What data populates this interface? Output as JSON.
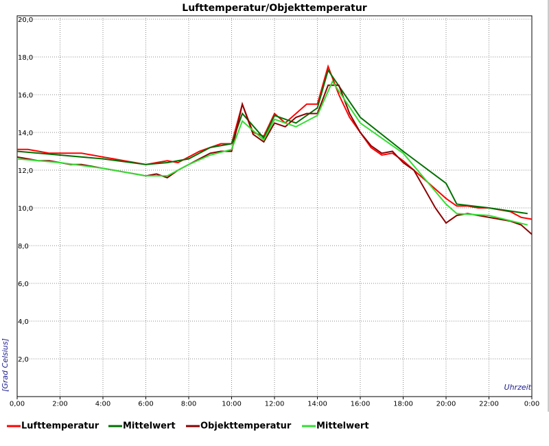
{
  "chart_data": {
    "type": "line",
    "title": "Lufttemperatur/Objekttemperatur",
    "x_label": "Uhrzeit",
    "y_label": "[Grad Celsius]",
    "xlim": [
      0,
      24
    ],
    "ylim": [
      0,
      20
    ],
    "grid": true,
    "xticks": [
      {
        "value": 0,
        "label": "0,00"
      },
      {
        "value": 2,
        "label": "2:00"
      },
      {
        "value": 4,
        "label": "4:00"
      },
      {
        "value": 6,
        "label": "6:00"
      },
      {
        "value": 8,
        "label": "8:00"
      },
      {
        "value": 10,
        "label": "10:00"
      },
      {
        "value": 12,
        "label": "12:00"
      },
      {
        "value": 14,
        "label": "14:00"
      },
      {
        "value": 16,
        "label": "16:00"
      },
      {
        "value": 18,
        "label": "18:00"
      },
      {
        "value": 20,
        "label": "20:00"
      },
      {
        "value": 22,
        "label": "22:00"
      },
      {
        "value": 24,
        "label": "0:00"
      }
    ],
    "yticks": [
      {
        "value": 2,
        "label": "2,0"
      },
      {
        "value": 4,
        "label": "4,0"
      },
      {
        "value": 6,
        "label": "6,0"
      },
      {
        "value": 8,
        "label": "8,0"
      },
      {
        "value": 10,
        "label": "10,0"
      },
      {
        "value": 12,
        "label": "12,0"
      },
      {
        "value": 14,
        "label": "14,0"
      },
      {
        "value": 16,
        "label": "16,0"
      },
      {
        "value": 18,
        "label": "18,0"
      },
      {
        "value": 20,
        "label": "20,0"
      }
    ],
    "series": [
      {
        "name": "Lufttemperatur",
        "color": "#ff0000",
        "x": [
          0,
          0.5,
          1,
          1.5,
          2,
          2.5,
          3,
          3.5,
          4,
          4.5,
          5,
          5.5,
          6,
          6.5,
          7,
          7.5,
          8,
          8.5,
          9,
          9.5,
          10,
          10.5,
          11,
          11.5,
          12,
          12.5,
          13,
          13.5,
          14,
          14.5,
          15,
          15.5,
          16,
          16.5,
          17,
          17.5,
          18,
          18.5,
          19,
          19.5,
          20,
          20.5,
          21,
          21.5,
          22,
          22.5,
          23,
          23.5,
          24
        ],
        "values": [
          13.1,
          13.1,
          13.0,
          12.9,
          12.9,
          12.9,
          12.9,
          12.8,
          12.7,
          12.6,
          12.5,
          12.4,
          12.3,
          12.4,
          12.5,
          12.4,
          12.7,
          13.0,
          13.2,
          13.4,
          13.4,
          15.5,
          14.0,
          13.8,
          15.0,
          14.5,
          15.0,
          15.5,
          15.5,
          17.5,
          16.0,
          14.8,
          14.0,
          13.2,
          12.8,
          12.9,
          12.5,
          12.0,
          11.5,
          11.0,
          10.5,
          10.1,
          10.1,
          10.0,
          10.0,
          9.9,
          9.8,
          9.5,
          9.4
        ]
      },
      {
        "name": "Mittelwert",
        "color": "#007000",
        "x": [
          0,
          2,
          4,
          6,
          7,
          8,
          9,
          10,
          10.5,
          11.5,
          12,
          13,
          14,
          14.5,
          16,
          18,
          20,
          20.5,
          22,
          23.8
        ],
        "values": [
          13.0,
          12.8,
          12.6,
          12.3,
          12.4,
          12.6,
          13.2,
          13.4,
          15.0,
          13.7,
          14.9,
          14.5,
          15.3,
          17.3,
          14.8,
          13.0,
          11.3,
          10.2,
          10.0,
          9.7
        ]
      },
      {
        "name": "Objekttemperatur",
        "color": "#8b0000",
        "x": [
          0,
          0.5,
          1,
          1.5,
          2,
          2.5,
          3,
          3.5,
          4,
          4.5,
          5,
          5.5,
          6,
          6.5,
          7,
          7.5,
          8,
          8.5,
          9,
          9.5,
          10,
          10.5,
          11,
          11.5,
          12,
          12.5,
          13,
          13.5,
          14,
          14.5,
          15,
          15.5,
          16,
          16.5,
          17,
          17.5,
          18,
          18.5,
          19,
          19.5,
          20,
          20.5,
          21,
          21.5,
          22,
          22.5,
          23,
          23.5,
          24
        ],
        "values": [
          12.7,
          12.6,
          12.5,
          12.5,
          12.4,
          12.3,
          12.3,
          12.2,
          12.1,
          12.0,
          11.9,
          11.8,
          11.7,
          11.8,
          11.6,
          12.0,
          12.3,
          12.6,
          12.9,
          13.0,
          13.0,
          15.5,
          13.9,
          13.5,
          14.5,
          14.3,
          14.8,
          15.0,
          15.0,
          16.5,
          16.5,
          15.0,
          14.0,
          13.3,
          12.9,
          13.0,
          12.4,
          12.0,
          11.0,
          10.0,
          9.2,
          9.6,
          9.7,
          9.6,
          9.5,
          9.4,
          9.3,
          9.1,
          8.6
        ]
      },
      {
        "name": "Mittelwert",
        "color": "#33dd33",
        "x": [
          0,
          2,
          4,
          6,
          7,
          8,
          9,
          10,
          10.5,
          11.5,
          12,
          13,
          14,
          14.7,
          16,
          18,
          20,
          20.5,
          22,
          23.8
        ],
        "values": [
          12.6,
          12.4,
          12.1,
          11.7,
          11.7,
          12.3,
          12.8,
          13.1,
          14.6,
          13.6,
          14.7,
          14.3,
          14.9,
          16.7,
          14.5,
          12.9,
          10.2,
          9.7,
          9.6,
          9.1
        ]
      }
    ]
  }
}
